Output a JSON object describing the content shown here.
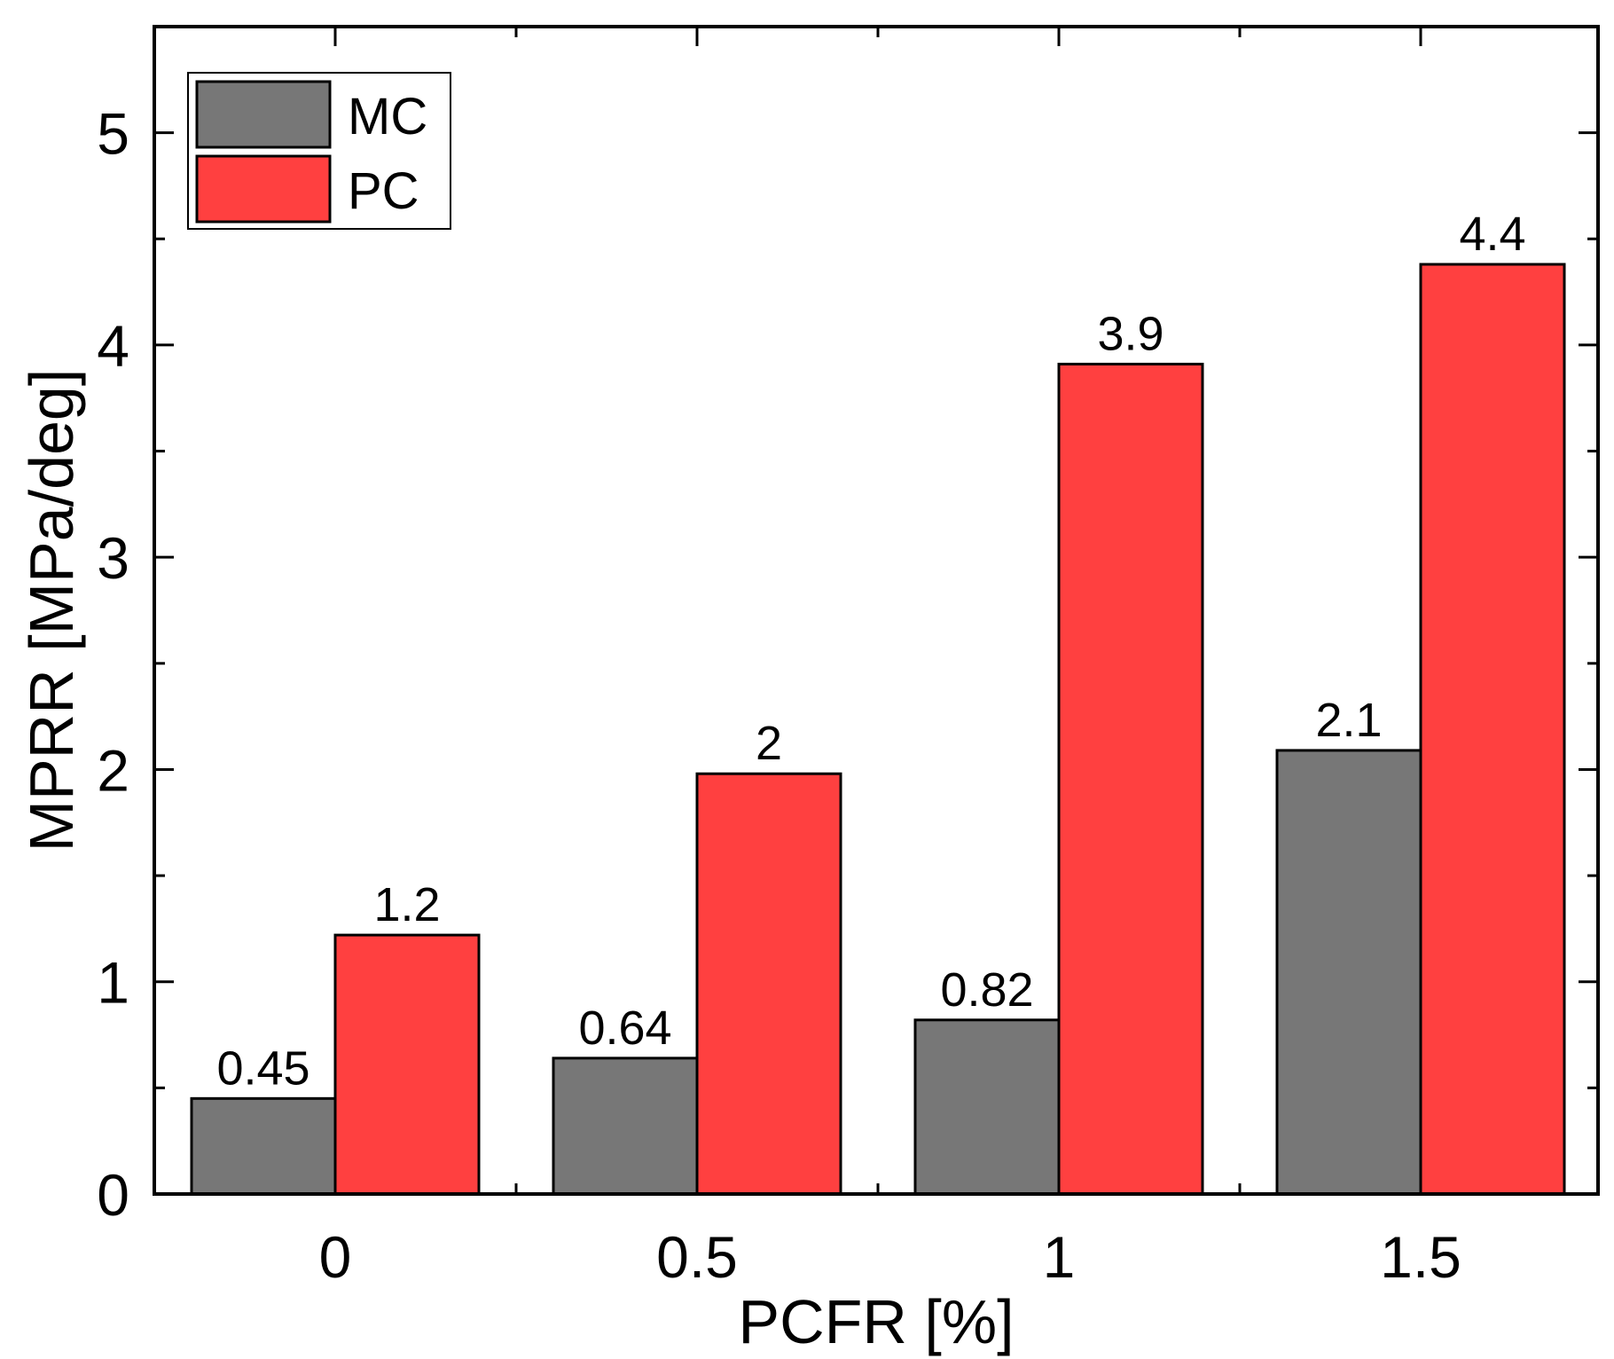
{
  "chart_data": {
    "type": "bar",
    "title": "",
    "xlabel": "PCFR [%]",
    "ylabel": "MPRR [MPa/deg]",
    "categories": [
      "0",
      "0.5",
      "1",
      "1.5"
    ],
    "series": [
      {
        "name": "MC",
        "color": "#777777",
        "values": [
          0.45,
          0.64,
          0.82,
          2.09
        ],
        "labels": [
          "0.45",
          "0.64",
          "0.82",
          "2.1"
        ]
      },
      {
        "name": "PC",
        "color": "#ff4040",
        "values": [
          1.22,
          1.98,
          3.91,
          4.38
        ],
        "labels": [
          "1.2",
          "2",
          "3.9",
          "4.4"
        ]
      }
    ],
    "ylim": [
      0,
      5.5
    ],
    "yticks": [
      0,
      1,
      2,
      3,
      4,
      5
    ],
    "yminor": [
      0.5,
      1.5,
      2.5,
      3.5,
      4.5
    ],
    "grid": false,
    "legend_position": "top-left"
  }
}
